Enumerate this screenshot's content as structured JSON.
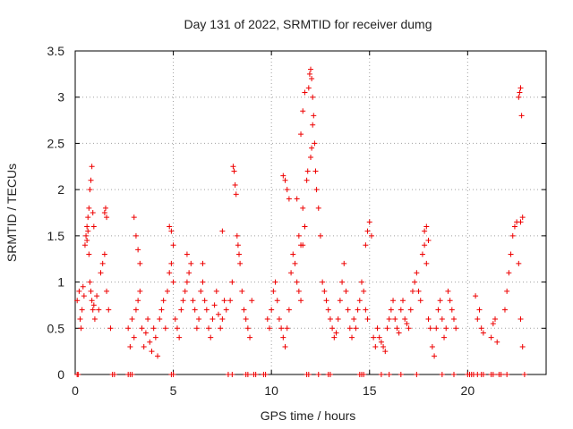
{
  "chart_data": {
    "type": "scatter",
    "title": "Day 131 of 2022, SRMTID for receiver dumg",
    "xlabel": "GPS time / hours",
    "ylabel": "SRMTID / TECUs",
    "xlim": [
      0,
      24
    ],
    "ylim": [
      0,
      3.5
    ],
    "xticks": [
      0,
      5,
      10,
      15,
      20
    ],
    "yticks": [
      0,
      0.5,
      1,
      1.5,
      2,
      2.5,
      3,
      3.5
    ],
    "ytick_labels": [
      "0",
      "0.5",
      "1",
      "1.5",
      "2",
      "2.5",
      "3",
      "3.5"
    ],
    "grid": true,
    "marker": "plus",
    "color": "#ee0000",
    "series": [
      {
        "x": [
          0.1,
          0.2,
          0.25,
          0.3,
          0.35,
          0.4,
          0.45,
          0.5,
          0.55,
          0.6,
          0.65,
          0.7,
          0.75,
          0.8,
          0.85,
          0.9,
          0.95,
          1.0,
          1.1,
          1.2,
          1.3,
          1.4,
          1.5,
          1.6,
          1.7,
          1.8,
          0.7,
          0.75,
          0.8,
          0.85,
          0.9,
          0.95,
          0.6,
          0.65,
          1.5,
          1.55,
          1.6,
          2.7,
          2.8,
          2.9,
          3.0,
          3.1,
          3.2,
          3.3,
          3.4,
          3.5,
          3.6,
          3.7,
          3.8,
          3.9,
          4.0,
          4.1,
          4.2,
          4.3,
          4.4,
          4.5,
          4.6,
          4.7,
          4.8,
          4.9,
          5.0,
          3.0,
          3.1,
          3.2,
          3.3,
          4.8,
          4.9,
          5.0,
          5.1,
          5.2,
          5.3,
          5.4,
          5.5,
          5.6,
          5.7,
          5.8,
          5.9,
          6.0,
          6.1,
          6.2,
          6.3,
          6.4,
          6.5,
          6.6,
          6.7,
          6.8,
          6.9,
          7.0,
          7.1,
          7.2,
          7.3,
          7.4,
          7.5,
          7.6,
          7.7,
          5.7,
          6.5,
          7.5,
          7.9,
          8.0,
          8.05,
          8.1,
          8.15,
          8.2,
          8.25,
          8.3,
          8.35,
          8.4,
          8.5,
          8.6,
          8.7,
          8.8,
          8.9,
          9.0,
          9.8,
          9.9,
          10.0,
          10.1,
          10.2,
          10.3,
          10.4,
          10.5,
          10.6,
          10.7,
          10.8,
          10.9,
          11.0,
          11.1,
          11.2,
          11.3,
          11.4,
          11.5,
          11.6,
          11.7,
          10.6,
          10.7,
          10.8,
          10.9,
          11.3,
          11.4,
          11.5,
          11.8,
          11.85,
          11.9,
          11.95,
          12.0,
          12.05,
          12.1,
          12.15,
          12.2,
          12.25,
          12.3,
          12.4,
          12.5,
          11.5,
          11.6,
          11.7,
          12.0,
          12.05,
          12.1,
          11.6,
          11.7,
          12.6,
          12.7,
          12.8,
          12.9,
          13.0,
          13.1,
          13.2,
          13.3,
          13.4,
          13.5,
          13.6,
          13.7,
          13.8,
          13.9,
          14.0,
          14.1,
          14.2,
          14.3,
          14.4,
          14.5,
          14.6,
          14.7,
          14.8,
          14.9,
          14.8,
          14.9,
          15.0,
          15.1,
          15.2,
          15.3,
          15.4,
          15.5,
          15.6,
          15.7,
          15.8,
          15.9,
          16.0,
          16.1,
          16.2,
          16.3,
          16.4,
          16.5,
          16.6,
          16.7,
          16.8,
          16.9,
          17.0,
          17.1,
          17.2,
          17.3,
          17.4,
          17.5,
          17.6,
          17.7,
          17.8,
          17.9,
          17.8,
          17.9,
          18.0,
          18.0,
          18.1,
          18.2,
          18.3,
          18.4,
          18.5,
          18.6,
          18.7,
          18.8,
          18.9,
          19.0,
          19.1,
          19.2,
          19.3,
          19.4,
          20.4,
          20.5,
          20.6,
          20.7,
          20.8,
          21.2,
          21.3,
          21.4,
          21.5,
          21.9,
          22.0,
          22.1,
          22.2,
          22.3,
          22.4,
          22.5,
          22.6,
          22.7,
          22.8,
          22.6,
          22.65,
          22.7,
          22.75,
          22.8,
          22.7,
          0.1,
          0.15,
          1.9,
          2.0,
          2.7,
          2.8,
          2.9,
          4.9,
          5.0,
          7.8,
          8.0,
          8.7,
          8.8,
          9.1,
          9.2,
          9.6,
          9.7,
          11.8,
          11.9,
          12.4,
          12.9,
          13.0,
          14.5,
          14.6,
          14.7,
          15.6,
          16.0,
          16.6,
          17.4,
          18.7,
          19.3,
          20.0,
          20.1,
          20.2,
          20.3,
          20.5,
          20.7,
          20.8,
          21.2,
          21.3,
          21.6,
          21.7,
          22.0,
          22.9
        ],
        "y": [
          0.8,
          0.9,
          0.6,
          0.5,
          0.7,
          0.95,
          0.85,
          1.4,
          1.5,
          1.6,
          1.7,
          1.3,
          1.0,
          0.9,
          0.8,
          0.7,
          0.75,
          0.6,
          0.85,
          0.7,
          1.1,
          1.2,
          1.3,
          0.9,
          0.7,
          0.5,
          1.8,
          2.0,
          2.1,
          2.25,
          1.75,
          1.6,
          1.45,
          1.55,
          1.75,
          1.8,
          1.7,
          0.5,
          0.3,
          0.6,
          0.4,
          0.7,
          0.8,
          0.9,
          0.5,
          0.3,
          0.45,
          0.6,
          0.35,
          0.25,
          0.5,
          0.4,
          0.2,
          0.6,
          0.7,
          0.8,
          0.5,
          0.9,
          1.1,
          1.2,
          1.0,
          1.7,
          1.5,
          1.35,
          1.2,
          1.6,
          1.55,
          1.4,
          0.6,
          0.5,
          0.4,
          0.7,
          0.8,
          0.9,
          1.0,
          1.1,
          1.2,
          0.8,
          0.7,
          0.5,
          0.6,
          0.9,
          1.0,
          0.8,
          0.7,
          0.5,
          0.4,
          0.6,
          0.75,
          0.9,
          0.65,
          0.5,
          0.6,
          0.8,
          0.7,
          1.3,
          1.2,
          1.55,
          0.8,
          1.0,
          2.25,
          2.2,
          2.05,
          1.95,
          1.5,
          1.4,
          1.3,
          1.2,
          0.9,
          0.7,
          0.6,
          0.5,
          0.4,
          0.8,
          0.6,
          0.5,
          0.7,
          0.9,
          1.0,
          0.8,
          0.6,
          0.5,
          0.4,
          0.3,
          0.5,
          0.7,
          1.1,
          1.3,
          1.2,
          1.0,
          0.9,
          0.8,
          1.4,
          1.6,
          2.15,
          2.1,
          2.0,
          1.9,
          1.9,
          1.5,
          1.4,
          2.1,
          2.2,
          3.1,
          3.25,
          3.3,
          3.2,
          3.0,
          2.8,
          2.5,
          2.2,
          2.0,
          1.8,
          1.5,
          2.6,
          2.85,
          3.05,
          2.35,
          2.45,
          2.7,
          1.8,
          1.6,
          1.0,
          0.9,
          0.8,
          0.7,
          0.6,
          0.5,
          0.4,
          0.45,
          0.6,
          0.8,
          1.0,
          1.2,
          0.9,
          0.7,
          0.5,
          0.4,
          0.6,
          0.5,
          0.7,
          0.8,
          1.0,
          0.9,
          0.7,
          0.6,
          1.4,
          1.55,
          1.65,
          1.5,
          0.4,
          0.3,
          0.5,
          0.4,
          0.35,
          0.3,
          0.25,
          0.5,
          0.6,
          0.7,
          0.8,
          0.6,
          0.5,
          0.45,
          0.7,
          0.8,
          0.6,
          0.55,
          0.5,
          0.7,
          0.9,
          1.0,
          1.1,
          0.9,
          0.8,
          1.3,
          1.4,
          1.2,
          1.55,
          1.6,
          1.45,
          0.6,
          0.5,
          0.3,
          0.2,
          0.5,
          0.7,
          0.8,
          0.6,
          0.4,
          0.5,
          0.9,
          0.8,
          0.7,
          0.6,
          0.5,
          0.85,
          0.6,
          0.7,
          0.5,
          0.45,
          0.4,
          0.55,
          0.6,
          0.35,
          0.7,
          0.9,
          1.1,
          1.3,
          1.5,
          1.6,
          1.65,
          1.2,
          0.6,
          0.3,
          3.0,
          3.05,
          3.1,
          2.8,
          1.7,
          1.65,
          0.0,
          0.0,
          0.0,
          0.0,
          0.0,
          0.0,
          0.0,
          0.0,
          0.0,
          0.0,
          0.0,
          0.0,
          0.0,
          0.0,
          0.0,
          0.0,
          0.0,
          0.0,
          0.0,
          0.0,
          0.0,
          0.0,
          0.0,
          0.0,
          0.0,
          0.0,
          0.0,
          0.0,
          0.0,
          0.0,
          0.0,
          0.0,
          0.0,
          0.0,
          0.0,
          0.0,
          0.0,
          0.0,
          0.0,
          0.0,
          0.0,
          0.0,
          0.0,
          0.0
        ]
      }
    ]
  }
}
